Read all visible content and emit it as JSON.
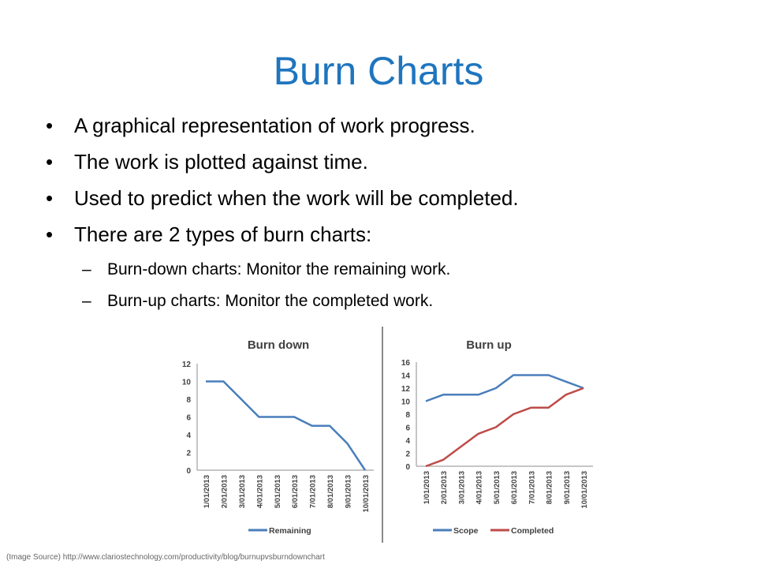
{
  "slide": {
    "title": "Burn Charts",
    "bullets": [
      "A graphical representation of work progress.",
      "The work is plotted against time.",
      "Used to predict when the work will be completed.",
      "There are 2 types of burn charts:"
    ],
    "sub_bullets": [
      "Burn-down charts: Monitor the remaining work.",
      "Burn-up charts: Monitor the completed work."
    ],
    "bullet_glyph": "•",
    "dash_glyph": "–",
    "source": "(Image Source) http://www.clariostechnology.com/productivity/blog/burnupvsburndownchart"
  },
  "chart_data": [
    {
      "type": "line",
      "title": "Burn down",
      "x": [
        "1/01/2013",
        "2/01/2013",
        "3/01/2013",
        "4/01/2013",
        "5/01/2013",
        "6/01/2013",
        "7/01/2013",
        "8/01/2013",
        "9/01/2013",
        "10/01/2013"
      ],
      "series": [
        {
          "name": "Remaining",
          "color": "#4A7EBB",
          "values": [
            10,
            10,
            8,
            6,
            6,
            6,
            5,
            5,
            3,
            0
          ]
        }
      ],
      "ylim": [
        0,
        12
      ],
      "yticks": [
        "0",
        "2",
        "4",
        "6",
        "8",
        "10",
        "12"
      ],
      "grid": false,
      "legend": "bottom"
    },
    {
      "type": "line",
      "title": "Burn up",
      "x": [
        "1/01/2013",
        "2/01/2013",
        "3/01/2013",
        "4/01/2013",
        "5/01/2013",
        "6/01/2013",
        "7/01/2013",
        "8/01/2013",
        "9/01/2013",
        "10/01/2013"
      ],
      "series": [
        {
          "name": "Scope",
          "color": "#4A7EBB",
          "values": [
            10,
            11,
            11,
            11,
            12,
            14,
            14,
            14,
            13,
            12
          ]
        },
        {
          "name": "Completed",
          "color": "#BE4B48",
          "values": [
            0,
            1,
            3,
            5,
            6,
            8,
            9,
            9,
            11,
            12
          ]
        }
      ],
      "ylim": [
        0,
        16
      ],
      "yticks": [
        "0",
        "2",
        "4",
        "6",
        "8",
        "10",
        "12",
        "14",
        "16"
      ],
      "grid": false,
      "legend": "bottom"
    }
  ]
}
